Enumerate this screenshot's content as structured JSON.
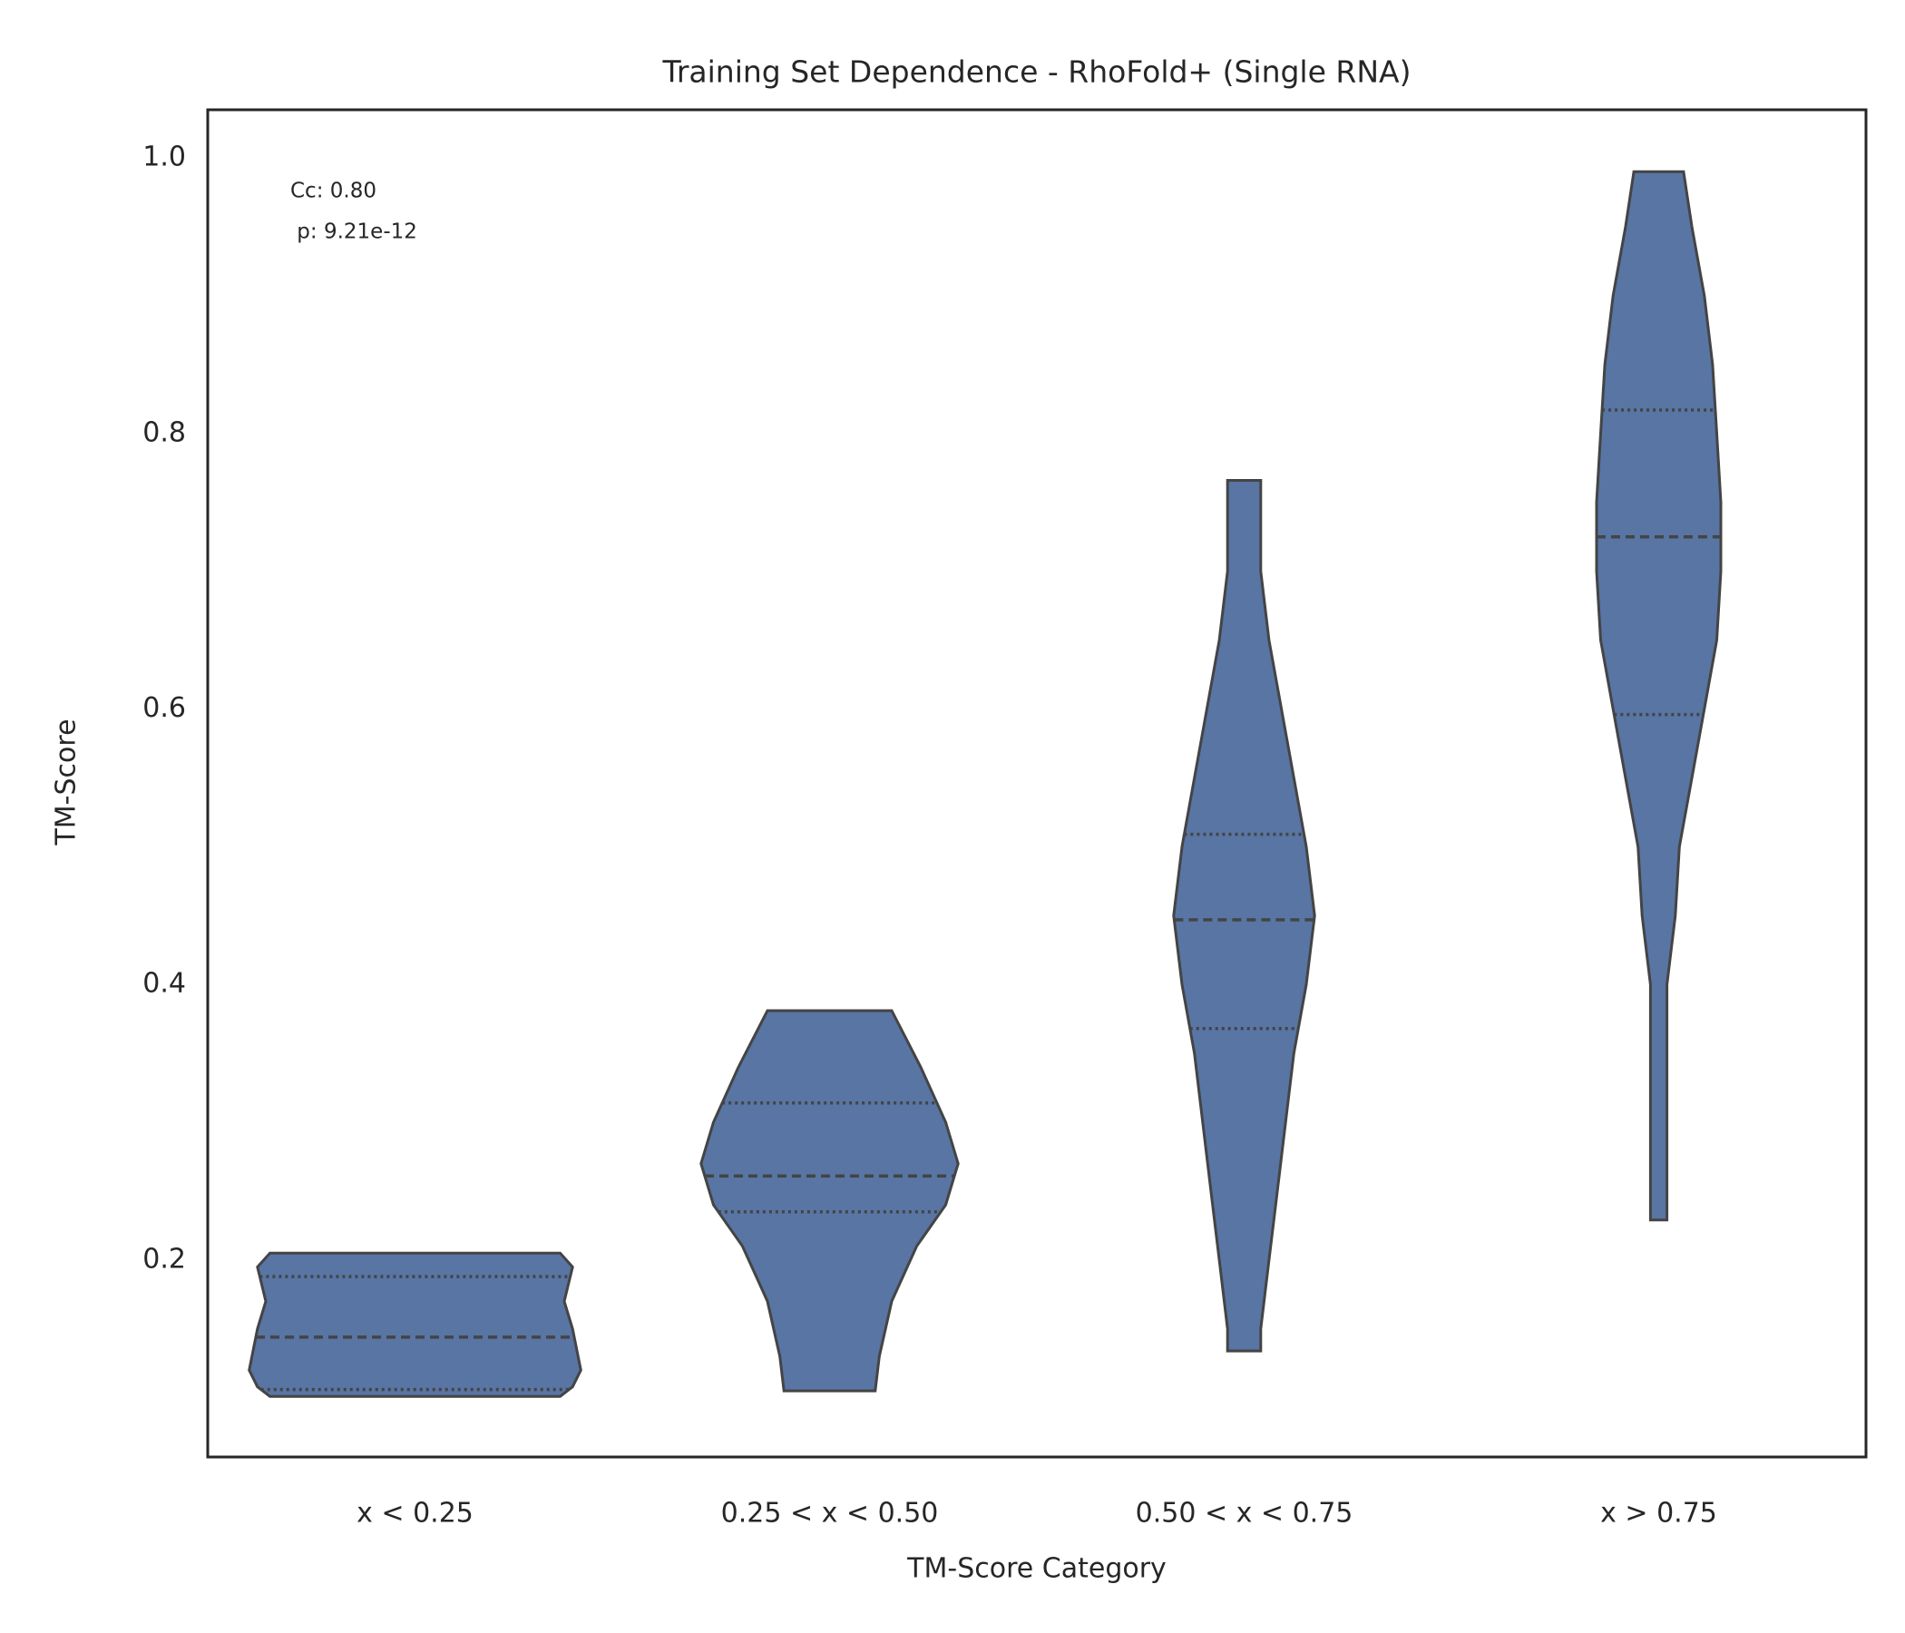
{
  "chart_data": {
    "type": "violin",
    "title": "Training Set Dependence - RhoFold+ (Single RNA)",
    "x_label": "TM-Score Category",
    "y_label": "TM-Score",
    "annotation": [
      "Cc: 0.80",
      " p: 9.21e-12"
    ],
    "categories": [
      "x < 0.25",
      "0.25 < x < 0.50",
      "0.50 < x < 0.75",
      "x > 0.75"
    ],
    "color": "#5875a4",
    "edge_color": "#444444",
    "ylim": [
      0.057,
      1.035
    ],
    "yticks": [
      {
        "value": 0.2,
        "label": "0.2"
      },
      {
        "value": 0.4,
        "label": "0.4"
      },
      {
        "value": 0.6,
        "label": "0.6"
      },
      {
        "value": 0.8,
        "label": "0.8"
      },
      {
        "value": 1.0,
        "label": "1.0"
      }
    ],
    "grid": false,
    "violins": [
      {
        "q1": 0.106,
        "median": 0.144,
        "q3": 0.188,
        "density_y": [
          0.205,
          0.195,
          0.17,
          0.15,
          0.12,
          0.108,
          0.101
        ],
        "density_width": [
          0.35,
          0.38,
          0.36,
          0.38,
          0.4,
          0.38,
          0.35
        ]
      },
      {
        "q1": 0.235,
        "median": 0.261,
        "q3": 0.314,
        "density_y": [
          0.381,
          0.34,
          0.3,
          0.27,
          0.24,
          0.21,
          0.17,
          0.13,
          0.105
        ],
        "density_width": [
          0.15,
          0.22,
          0.28,
          0.31,
          0.28,
          0.21,
          0.15,
          0.12,
          0.11
        ]
      },
      {
        "q1": 0.368,
        "median": 0.447,
        "q3": 0.509,
        "density_y": [
          0.766,
          0.7,
          0.65,
          0.6,
          0.55,
          0.5,
          0.45,
          0.4,
          0.35,
          0.3,
          0.25,
          0.2,
          0.15,
          0.134
        ],
        "density_width": [
          0.04,
          0.04,
          0.06,
          0.09,
          0.12,
          0.15,
          0.17,
          0.15,
          0.12,
          0.1,
          0.08,
          0.06,
          0.04,
          0.04
        ]
      },
      {
        "q1": 0.596,
        "median": 0.725,
        "q3": 0.817,
        "density_y": [
          0.99,
          0.95,
          0.9,
          0.85,
          0.8,
          0.75,
          0.7,
          0.65,
          0.6,
          0.55,
          0.5,
          0.45,
          0.4,
          0.35,
          0.3,
          0.229
        ],
        "density_width": [
          0.06,
          0.08,
          0.11,
          0.13,
          0.14,
          0.15,
          0.15,
          0.14,
          0.11,
          0.08,
          0.05,
          0.04,
          0.02,
          0.02,
          0.02,
          0.02
        ]
      }
    ]
  }
}
